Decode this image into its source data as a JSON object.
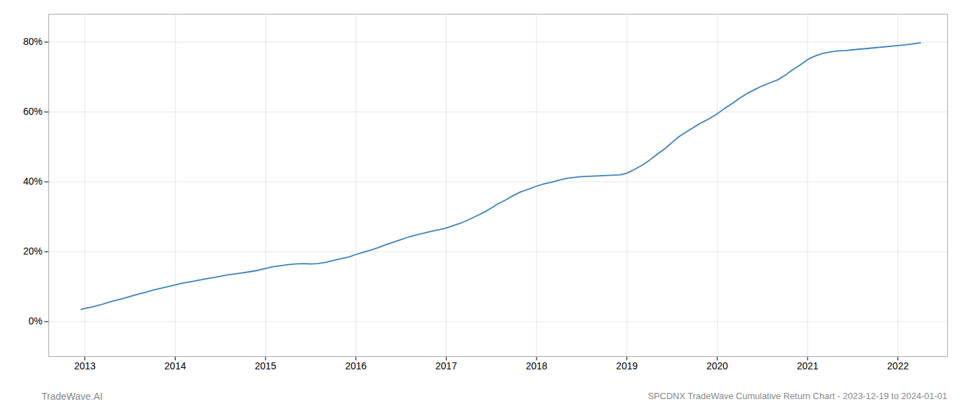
{
  "chart_data": {
    "type": "line",
    "title": "SPCDNX TradeWave Cumulative Return Chart - 2023-12-19 to 2024-01-01",
    "annotations": [
      "TradeWave.AI"
    ],
    "color": "#3a80c0",
    "grid": true,
    "x": [
      2012.96,
      2013.0,
      2013.08,
      2013.17,
      2013.25,
      2013.33,
      2013.42,
      2013.5,
      2013.58,
      2013.67,
      2013.75,
      2013.83,
      2013.92,
      2014.0,
      2014.08,
      2014.17,
      2014.25,
      2014.33,
      2014.42,
      2014.5,
      2014.58,
      2014.67,
      2014.75,
      2014.83,
      2014.92,
      2015.0,
      2015.08,
      2015.17,
      2015.25,
      2015.33,
      2015.42,
      2015.5,
      2015.58,
      2015.67,
      2015.75,
      2015.83,
      2015.92,
      2016.0,
      2016.08,
      2016.17,
      2016.25,
      2016.33,
      2016.42,
      2016.5,
      2016.58,
      2016.67,
      2016.75,
      2016.83,
      2016.92,
      2017.0,
      2017.08,
      2017.17,
      2017.25,
      2017.33,
      2017.42,
      2017.5,
      2017.58,
      2017.67,
      2017.75,
      2017.83,
      2017.92,
      2018.0,
      2018.08,
      2018.17,
      2018.25,
      2018.33,
      2018.42,
      2018.5,
      2018.58,
      2018.67,
      2018.75,
      2018.83,
      2018.92,
      2019.0,
      2019.08,
      2019.17,
      2019.25,
      2019.33,
      2019.42,
      2019.5,
      2019.58,
      2019.67,
      2019.75,
      2019.83,
      2019.92,
      2020.0,
      2020.08,
      2020.17,
      2020.25,
      2020.33,
      2020.42,
      2020.5,
      2020.58,
      2020.67,
      2020.75,
      2020.83,
      2020.92,
      2021.0,
      2021.08,
      2021.17,
      2021.25,
      2021.33,
      2021.42,
      2021.5,
      2021.58,
      2021.67,
      2021.75,
      2021.83,
      2021.92,
      2022.0,
      2022.08,
      2022.17,
      2022.25
    ],
    "values": [
      3.5,
      3.8,
      4.2,
      4.8,
      5.4,
      6.0,
      6.6,
      7.2,
      7.8,
      8.4,
      9.0,
      9.5,
      10.0,
      10.5,
      11.0,
      11.4,
      11.8,
      12.2,
      12.6,
      13.0,
      13.4,
      13.7,
      14.0,
      14.3,
      14.7,
      15.2,
      15.7,
      16.0,
      16.3,
      16.5,
      16.6,
      16.5,
      16.6,
      17.0,
      17.5,
      18.0,
      18.5,
      19.2,
      19.8,
      20.5,
      21.2,
      22.0,
      22.8,
      23.5,
      24.2,
      24.8,
      25.3,
      25.8,
      26.3,
      26.8,
      27.5,
      28.3,
      29.2,
      30.2,
      31.3,
      32.5,
      33.8,
      35.0,
      36.2,
      37.2,
      38.0,
      38.8,
      39.4,
      39.9,
      40.5,
      41.0,
      41.3,
      41.5,
      41.6,
      41.7,
      41.8,
      41.9,
      42.0,
      42.5,
      43.5,
      44.8,
      46.2,
      47.8,
      49.5,
      51.3,
      53.0,
      54.5,
      55.8,
      57.0,
      58.2,
      59.5,
      61.0,
      62.5,
      64.0,
      65.3,
      66.5,
      67.5,
      68.3,
      69.2,
      70.5,
      72.0,
      73.5,
      75.0,
      76.0,
      76.8,
      77.2,
      77.5,
      77.6,
      77.8,
      78.0,
      78.2,
      78.4,
      78.6,
      78.8,
      79.0,
      79.2,
      79.5,
      79.8
    ],
    "xlim": [
      2012.6,
      2022.55
    ],
    "xticks": [
      2013,
      2014,
      2015,
      2016,
      2017,
      2018,
      2019,
      2020,
      2021,
      2022
    ],
    "ylim": [
      -10,
      88
    ],
    "yticks": [
      {
        "value": 0,
        "label": "0%"
      },
      {
        "value": 20,
        "label": "20%"
      },
      {
        "value": 40,
        "label": "40%"
      },
      {
        "value": 60,
        "label": "60%"
      },
      {
        "value": 80,
        "label": "80%"
      }
    ]
  }
}
